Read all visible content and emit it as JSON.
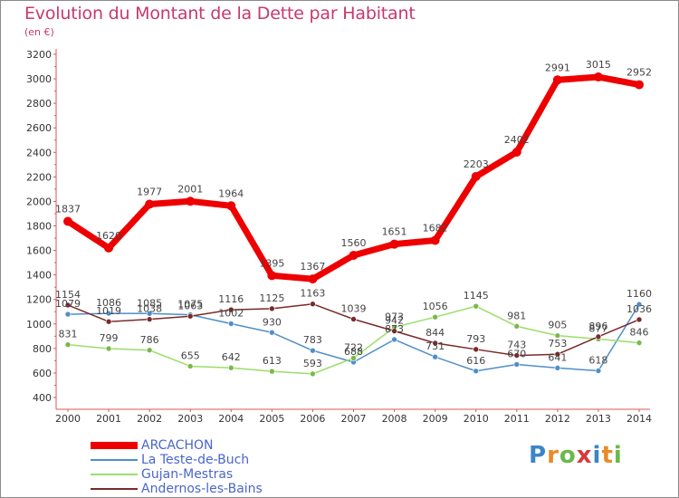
{
  "title": "Evolution du Montant de la Dette par Habitant",
  "unit": "(en €)",
  "logo": "Proxiti",
  "chart_data": {
    "type": "line",
    "x": [
      "2000",
      "2001",
      "2002",
      "2003",
      "2004",
      "2005",
      "2006",
      "2007",
      "2008",
      "2009",
      "2010",
      "2011",
      "2012",
      "2013",
      "2014"
    ],
    "ylim": [
      400,
      3200
    ],
    "yticks": [
      400,
      600,
      800,
      1000,
      1200,
      1400,
      1600,
      1800,
      2000,
      2200,
      2400,
      2600,
      2800,
      3000,
      3200
    ],
    "grid": false,
    "legend_position": "bottom-left",
    "series": [
      {
        "name": "ARCACHON",
        "color": "#ee0000",
        "width": 7,
        "values": [
          1837,
          1620,
          1977,
          2001,
          1964,
          1395,
          1367,
          1560,
          1651,
          1682,
          2203,
          2402,
          2991,
          3015,
          2952
        ],
        "labels": [
          "1837",
          "1620",
          "1977",
          "2001",
          "1964",
          "1395",
          "1367",
          "1560",
          "1651",
          "1682",
          "2203",
          "2402",
          "2991",
          "3015",
          "2952"
        ]
      },
      {
        "name": "La Teste-de-Buch",
        "color": "#4f8fc8",
        "width": 1.5,
        "values": [
          1079,
          1086,
          1085,
          1075,
          1002,
          930,
          783,
          688,
          873,
          731,
          616,
          670,
          641,
          618,
          1160
        ],
        "labels": [
          "1079",
          "1086",
          "1085",
          "1075",
          "1002",
          "930",
          "783",
          "688",
          "873",
          "731",
          "616",
          "670",
          "641",
          "618",
          "1160"
        ]
      },
      {
        "name": "Gujan-Mestras",
        "color": "#9ade6a",
        "width": 1.5,
        "values": [
          831,
          799,
          786,
          655,
          642,
          613,
          593,
          722,
          973,
          1056,
          1145,
          981,
          905,
          877,
          846
        ],
        "labels": [
          "831",
          "799",
          "786",
          "655",
          "642",
          "613",
          "593",
          "722",
          "973",
          "1056",
          "1145",
          "981",
          "905",
          "877",
          "846"
        ]
      },
      {
        "name": "Andernos-les-Bains",
        "color": "#7a2a2a",
        "width": 1.5,
        "values": [
          1154,
          1019,
          1038,
          1063,
          1116,
          1125,
          1163,
          1039,
          942,
          844,
          793,
          743,
          753,
          896,
          1036
        ],
        "labels": [
          "1154",
          "1019",
          "1038",
          "1063",
          "1116",
          "1125",
          "1163",
          "1039",
          "942",
          "844",
          "793",
          "743",
          "753",
          "896",
          "1036"
        ]
      }
    ]
  }
}
